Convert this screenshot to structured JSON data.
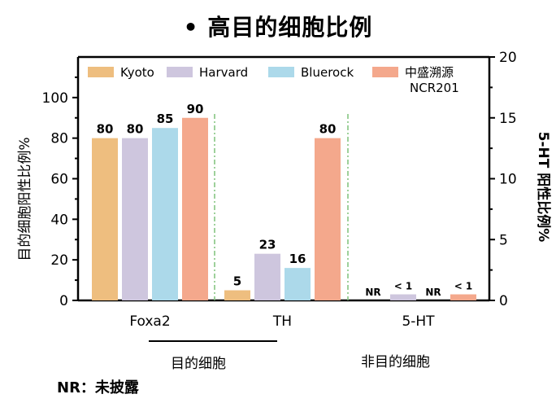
{
  "title": "• 高目的细胞比例",
  "chart_data": {
    "type": "bar",
    "categories": [
      "Foxa2",
      "TH",
      "5-HT"
    ],
    "series": [
      {
        "name": "Kyoto",
        "color": "#EEBE7F",
        "values": [
          80,
          5,
          null
        ],
        "labels": [
          "80",
          "5",
          "NR"
        ]
      },
      {
        "name": "Harvard",
        "color": "#CEC6DE",
        "values": [
          80,
          23,
          0.5
        ],
        "labels": [
          "80",
          "23",
          "< 1"
        ]
      },
      {
        "name": "Bluerock",
        "color": "#ACD9EA",
        "values": [
          85,
          16,
          null
        ],
        "labels": [
          "85",
          "16",
          "NR"
        ]
      },
      {
        "name": "中盛溯源\nNCR201",
        "color": "#F4A88C",
        "values": [
          90,
          80,
          0.5
        ],
        "labels": [
          "90",
          "80",
          "< 1"
        ]
      }
    ],
    "ylabel": "目的细胞阳性比例%",
    "ylim": [
      0,
      120
    ],
    "yticks": [
      0,
      20,
      40,
      60,
      80,
      100
    ],
    "y2label": "5-HT 阳性比例%",
    "y2lim": [
      0,
      20
    ],
    "y2ticks": [
      0,
      5,
      10,
      15,
      20
    ],
    "y2_series_category": "5-HT",
    "legend_position": "top",
    "grid": false
  },
  "group_labels": [
    "目的细胞",
    "非目的细胞"
  ],
  "footnote": "NR：未披露"
}
